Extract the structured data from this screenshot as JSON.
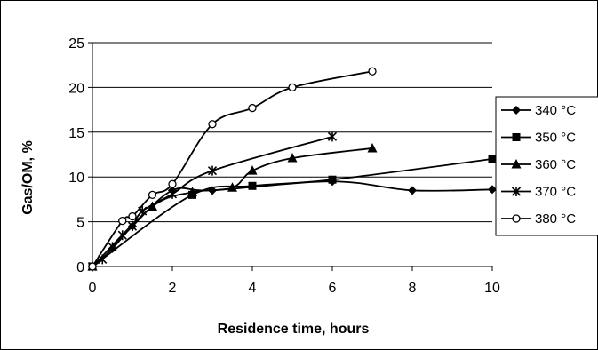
{
  "chart_data": {
    "type": "line",
    "title": "",
    "xlabel": "Residence time, hours",
    "ylabel": "Gas/OM, %",
    "xlim": [
      0,
      10
    ],
    "ylim": [
      0,
      25
    ],
    "x_ticks": [
      "0",
      "2",
      "4",
      "6",
      "8",
      "10"
    ],
    "y_ticks": [
      "0",
      "5",
      "10",
      "15",
      "20",
      "25"
    ],
    "grid": "horizontal",
    "legend_position": "right",
    "series": [
      {
        "name": "340 °C",
        "marker": "diamond",
        "x": [
          0,
          0.5,
          1,
          2,
          3,
          6,
          8,
          10
        ],
        "y": [
          0,
          2,
          4.5,
          8.5,
          8.5,
          9.5,
          8.5,
          8.6
        ]
      },
      {
        "name": "350 °C",
        "marker": "square",
        "x": [
          0,
          2.5,
          4,
          6,
          10
        ],
        "y": [
          0,
          8,
          9,
          9.7,
          12
        ]
      },
      {
        "name": "360 °C",
        "marker": "triangle",
        "x": [
          0,
          1.5,
          2.5,
          3.5,
          4,
          5,
          7
        ],
        "y": [
          0,
          6.7,
          8.3,
          8.8,
          10.7,
          12.1,
          13.2
        ]
      },
      {
        "name": "370 °C",
        "marker": "star",
        "x": [
          0,
          0.25,
          0.5,
          0.75,
          1,
          1.25,
          2,
          3,
          6
        ],
        "y": [
          0,
          0.8,
          2.2,
          3.5,
          4.5,
          6.2,
          8.1,
          10.7,
          14.5
        ]
      },
      {
        "name": "380 °C",
        "marker": "circle",
        "x": [
          0,
          0.75,
          1,
          1.5,
          2,
          3,
          4,
          5,
          7
        ],
        "y": [
          0,
          5.1,
          5.6,
          8,
          9.2,
          15.9,
          17.7,
          20,
          21.8
        ]
      }
    ]
  }
}
